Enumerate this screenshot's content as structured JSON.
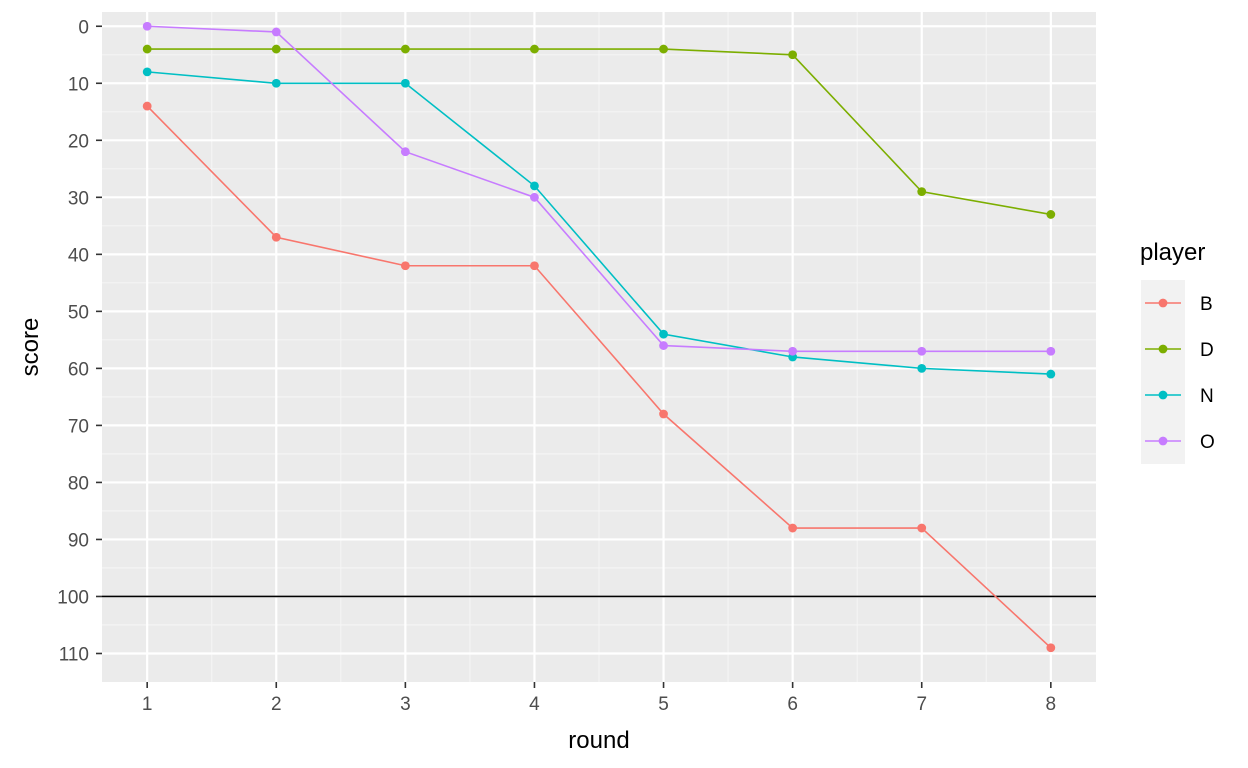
{
  "chart_data": {
    "type": "line",
    "xlabel": "round",
    "ylabel": "score",
    "x": [
      1,
      2,
      3,
      4,
      5,
      6,
      7,
      8
    ],
    "xlim": [
      0.65,
      8.35
    ],
    "ylim": [
      115,
      -2.5
    ],
    "y_reversed": true,
    "x_ticks": [
      1,
      2,
      3,
      4,
      5,
      6,
      7,
      8
    ],
    "y_ticks": [
      0,
      10,
      20,
      30,
      40,
      50,
      60,
      70,
      80,
      90,
      100,
      110
    ],
    "hline": 100,
    "grid": true,
    "legend_title": "player",
    "legend_position": "right",
    "series": [
      {
        "name": "B",
        "color": "#F8766D",
        "values": [
          14,
          37,
          42,
          42,
          68,
          88,
          88,
          109
        ]
      },
      {
        "name": "D",
        "color": "#7CAE00",
        "values": [
          4,
          4,
          4,
          4,
          4,
          5,
          29,
          33
        ]
      },
      {
        "name": "N",
        "color": "#00BFC4",
        "values": [
          8,
          10,
          10,
          28,
          54,
          58,
          60,
          61
        ]
      },
      {
        "name": "O",
        "color": "#C77CFF",
        "values": [
          0,
          1,
          22,
          30,
          56,
          57,
          57,
          57
        ]
      }
    ]
  }
}
